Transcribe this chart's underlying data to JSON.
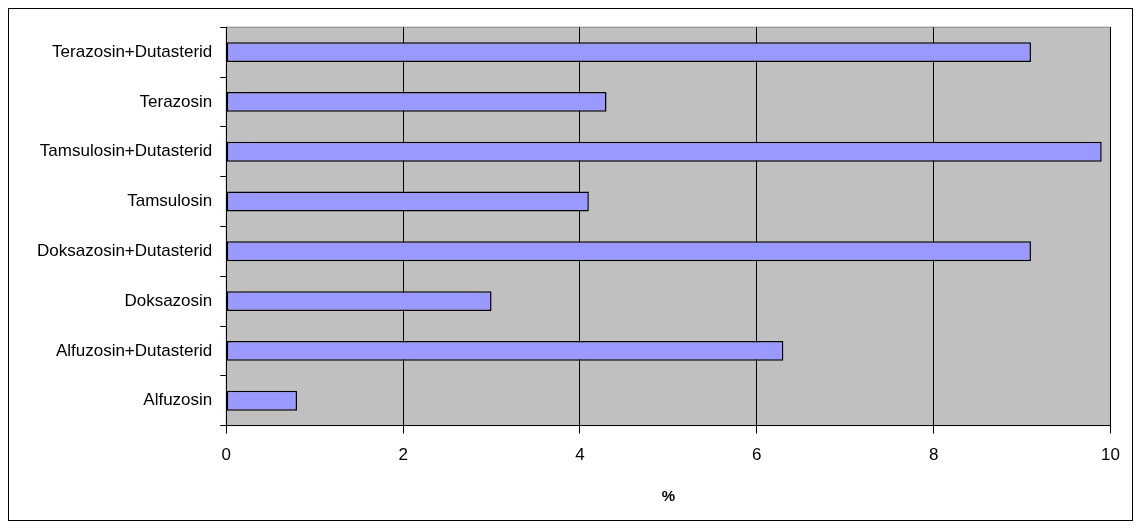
{
  "chart_data": {
    "type": "bar",
    "orientation": "horizontal",
    "xlabel": "%",
    "categories": [
      "Terazosin+Dutasterid",
      "Terazosin",
      "Tamsulosin+Dutasterid",
      "Tamsulosin",
      "Doksazosin+Dutasterid",
      "Doksazosin",
      "Alfuzosin+Dutasterid",
      "Alfuzosin"
    ],
    "values": [
      9.1,
      4.3,
      9.9,
      4.1,
      9.1,
      3.0,
      6.3,
      0.8
    ],
    "color": "#9999ff",
    "xlim": [
      0,
      10
    ],
    "xticks": [
      0,
      2,
      4,
      6,
      8,
      10
    ],
    "grid": "x",
    "legend": false
  }
}
